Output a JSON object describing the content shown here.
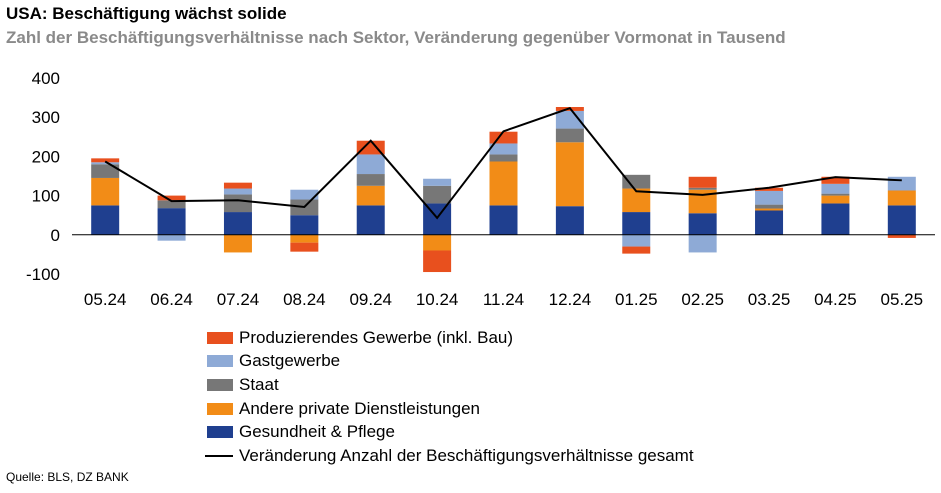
{
  "title": "USA: Beschäftigung wächst solide",
  "subtitle": "Zahl der Beschäftigungsverhältnisse nach Sektor, Veränderung gegenüber Vormonat in Tausend",
  "source": "Quelle: BLS, DZ BANK",
  "chart_data": {
    "type": "bar",
    "stacked": true,
    "categories": [
      "05.24",
      "06.24",
      "07.24",
      "08.24",
      "09.24",
      "10.24",
      "11.24",
      "12.24",
      "01.25",
      "02.25",
      "03.25",
      "04.25",
      "05.25"
    ],
    "ylim": [
      -100,
      400
    ],
    "yticks": [
      -100,
      0,
      100,
      200,
      300,
      400
    ],
    "grid": false,
    "series": [
      {
        "name": "Gesundheit & Pflege",
        "color": "#1f3f8f",
        "values": [
          75,
          68,
          58,
          50,
          75,
          80,
          75,
          73,
          58,
          55,
          62,
          80,
          75
        ]
      },
      {
        "name": "Andere private Dienstleistungen",
        "color": "#f28c17",
        "values": [
          70,
          0,
          -45,
          -20,
          50,
          -40,
          112,
          163,
          60,
          60,
          5,
          20,
          38
        ]
      },
      {
        "name": "Staat",
        "color": "#777777",
        "values": [
          35,
          20,
          45,
          40,
          30,
          45,
          18,
          35,
          35,
          5,
          10,
          5,
          0
        ]
      },
      {
        "name": "Gastgewerbe",
        "color": "#8eaad6",
        "values": [
          5,
          -15,
          15,
          25,
          50,
          18,
          28,
          45,
          -30,
          -45,
          35,
          25,
          35
        ]
      },
      {
        "name": "Produzierendes Gewerbe (inkl. Bau)",
        "color": "#e8501e",
        "values": [
          10,
          12,
          15,
          -23,
          35,
          -55,
          30,
          10,
          -18,
          28,
          8,
          18,
          -8
        ]
      }
    ],
    "total": {
      "name": "Veränderung Anzahl der Beschäftigungsverhältnisse gesamt",
      "color": "#000000",
      "values": [
        187,
        86,
        88,
        71,
        240,
        43,
        264,
        323,
        111,
        102,
        120,
        147,
        139
      ]
    },
    "legend_order": [
      "Produzierendes Gewerbe (inkl. Bau)",
      "Gastgewerbe",
      "Staat",
      "Andere private Dienstleistungen",
      "Gesundheit & Pflege",
      "Veränderung Anzahl der Beschäftigungsverhältnisse gesamt"
    ]
  }
}
